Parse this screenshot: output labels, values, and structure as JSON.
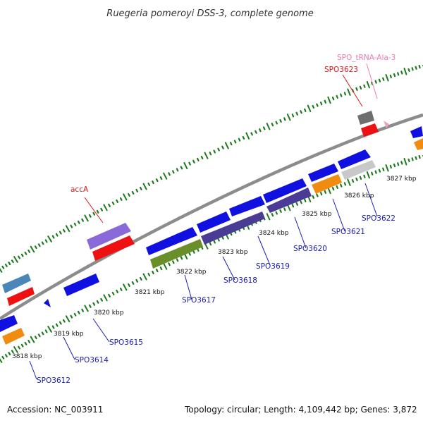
{
  "title": "Ruegeria pomeroyi DSS-3, complete genome",
  "footer": {
    "accession": "Accession: NC_003911",
    "summary": "Topology: circular; Length: 4,109,442 bp; Genes: 3,872"
  },
  "colors": {
    "background": "#ffffff",
    "backbone": "#8c8c8c",
    "tick": "#1e7a1e",
    "cds_blue": "#1010e0",
    "cds_red": "#ee1111",
    "cds_orange": "#f08c10",
    "cds_purple": "#8a6ad8",
    "cds_darkpurple": "#4a3c94",
    "cds_steel": "#4a86b8",
    "cds_olive": "#6a8e2a",
    "cds_grey": "#6e6e6e",
    "cds_lightgrey": "#c8c8c8",
    "trna_pink": "#f0a0c8",
    "label_blue": "#1a1ab0",
    "label_red": "#d81818",
    "label_pink": "#f07ab0"
  },
  "kbp_labels": [
    "3818 kbp",
    "3819 kbp",
    "3820 kbp",
    "3821 kbp",
    "3822 kbp",
    "3823 kbp",
    "3824 kbp",
    "3825 kbp",
    "3826 kbp",
    "3827 kbp"
  ],
  "gene_labels": [
    "SPO3612",
    "SPO3614",
    "SPO3615",
    "SPO3617",
    "SPO3618",
    "SPO3619",
    "SPO3620",
    "SPO3621",
    "SPO3622",
    "accA",
    "SPO3623",
    "SPO_tRNA-Ala-3"
  ]
}
